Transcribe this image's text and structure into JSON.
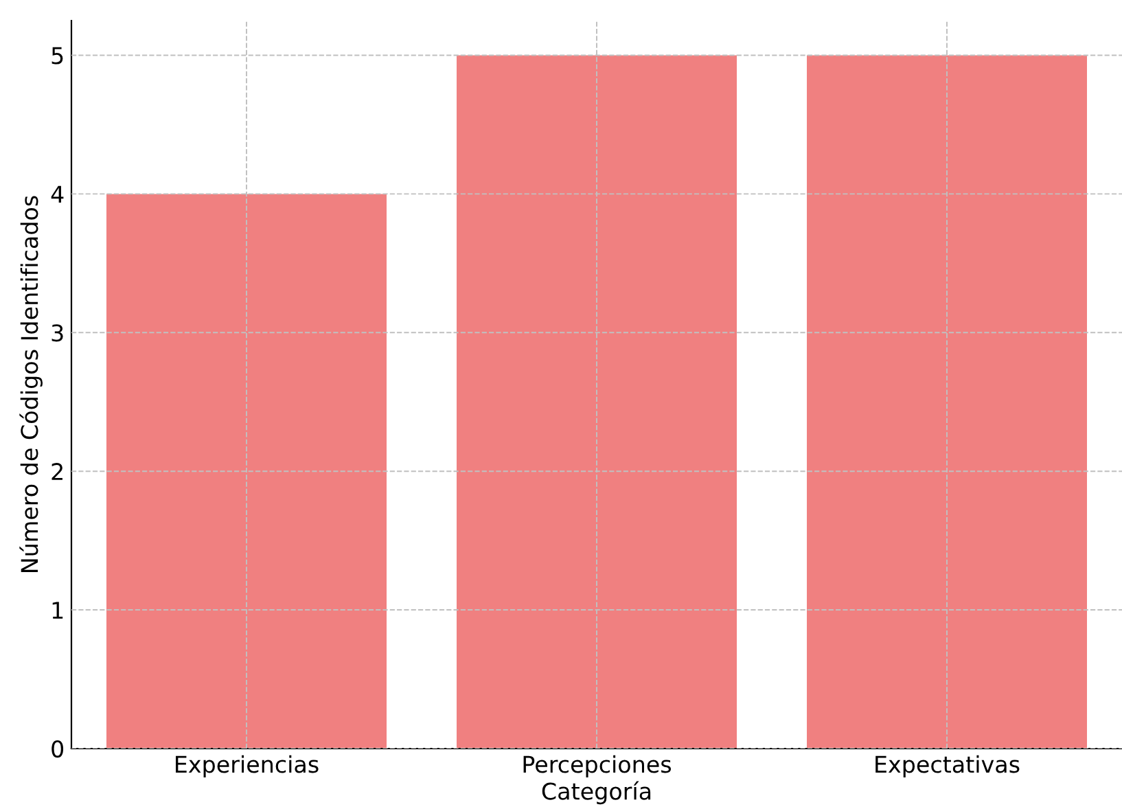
{
  "chart_data": {
    "type": "bar",
    "xlabel": "Categoría",
    "ylabel": "Número de Códigos Identificados",
    "categories": [
      "Experiencias",
      "Percepciones",
      "Expectativas"
    ],
    "values": [
      4,
      5,
      5
    ],
    "color": "#f08080",
    "ylim": [
      0,
      5.25
    ],
    "yticks": [
      0,
      1,
      2,
      3,
      4,
      5
    ],
    "grid": true
  }
}
